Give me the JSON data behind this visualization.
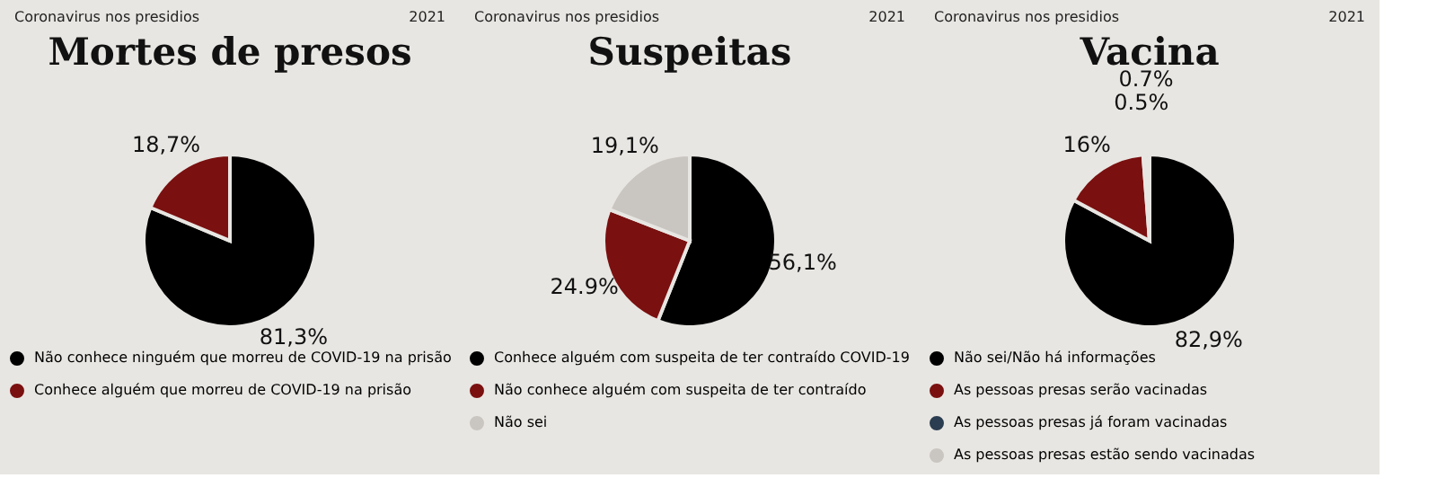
{
  "chart_data": [
    {
      "type": "pie",
      "title": "Mortes de presos",
      "annotations": [
        "Coronavirus nos presidios",
        "2021"
      ],
      "categories": [
        "Não conhece ninguém que morreu de COVID-19 na prisão",
        "Conhece alguém que morreu de COVID-19 na prisão"
      ],
      "values": [
        81.3,
        18.7
      ],
      "value_labels": [
        "81,3%",
        "18,7%"
      ],
      "colors": [
        "#000000",
        "#7a1010"
      ],
      "legend": "bottom"
    },
    {
      "type": "pie",
      "title": "Suspeitas",
      "annotations": [
        "Coronavirus nos presidios",
        "2021"
      ],
      "categories": [
        "Conhece alguém com suspeita de ter contraído COVID-19",
        "Não conhece alguém com suspeita de ter contraído",
        "Não sei"
      ],
      "values": [
        56.1,
        24.9,
        19.1
      ],
      "value_labels": [
        "56,1%",
        "24.9%",
        "19,1%"
      ],
      "colors": [
        "#000000",
        "#7a1010",
        "#c9c5c1"
      ],
      "legend": "bottom"
    },
    {
      "type": "pie",
      "title": "Vacina",
      "annotations": [
        "Coronavirus nos presidios",
        "2021"
      ],
      "categories": [
        "Não sei/Não há informações",
        "As pessoas presas serão vacinadas",
        "As pessoas presas já foram vacinadas",
        "As pessoas presas estão sendo vacinadas"
      ],
      "values": [
        82.9,
        16,
        0.5,
        0.7
      ],
      "value_labels": [
        "82,9%",
        "16%",
        "0.5%",
        "0.7%"
      ],
      "colors": [
        "#000000",
        "#7a1010",
        "#2b3d50",
        "#c9c5c1"
      ],
      "legend": "bottom"
    }
  ]
}
